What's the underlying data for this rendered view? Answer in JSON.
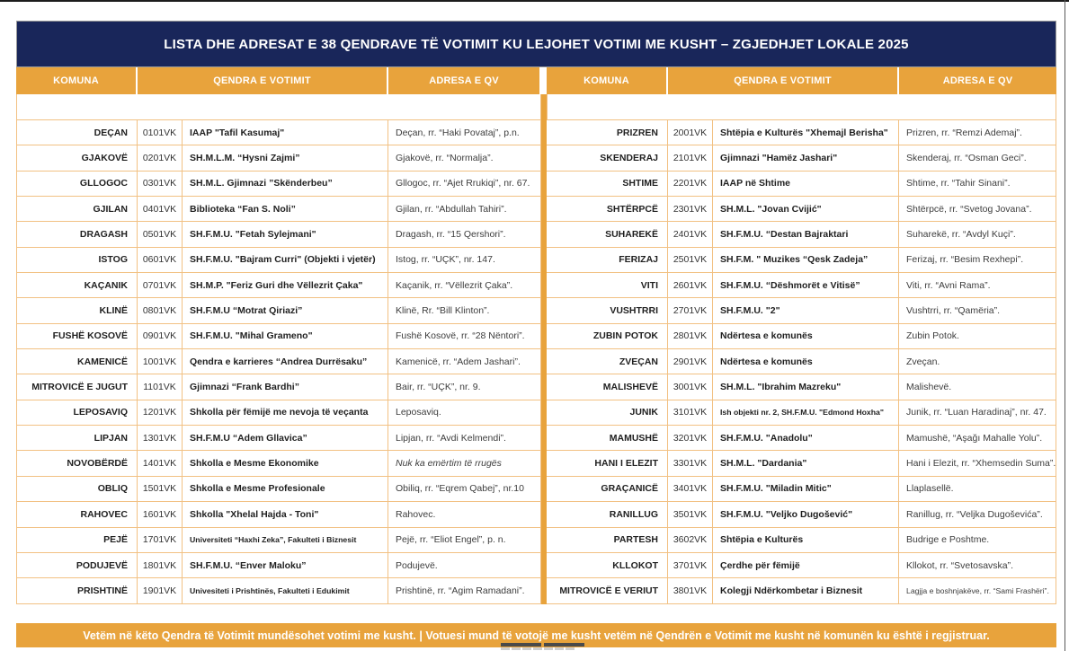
{
  "title": "LISTA DHE ADRESAT E 38 QENDRAVE TË VOTIMIT KU LEJOHET VOTIMI ME KUSHT – ZGJEDHJET LOKALE 2025",
  "columns": {
    "komuna": "KOMUNA",
    "qendra": "QENDRA E VOTIMIT",
    "adresa": "ADRESA E QV"
  },
  "colors": {
    "navy": "#19265A",
    "orange": "#E8A33C",
    "row_border": "#F2C183"
  },
  "left_rows": [
    {
      "komuna": "DEÇAN",
      "code": "0101VK",
      "qendra": "IAAP \"Tafil Kasumaj\"",
      "adresa": "Deçan, rr. “Haki Povataj”, p.n."
    },
    {
      "komuna": "GJAKOVË",
      "code": "0201VK",
      "qendra": "SH.M.L.M. “Hysni Zajmi”",
      "adresa": "Gjakovë, rr. “Normalja”."
    },
    {
      "komuna": "GLLOGOC",
      "code": "0301VK",
      "qendra": "SH.M.L. Gjimnazi ”Skënderbeu”",
      "adresa": "Gllogoc, rr. “Ajet Rrukiqi”, nr. 67."
    },
    {
      "komuna": "GJILAN",
      "code": "0401VK",
      "qendra": "Biblioteka “Fan S. Noli”",
      "adresa": "Gjilan, rr. “Abdullah Tahiri”."
    },
    {
      "komuna": "DRAGASH",
      "code": "0501VK",
      "qendra": "SH.F.M.U. \"Fetah Sylejmani\"",
      "adresa": "Dragash, rr. “15 Qershori”."
    },
    {
      "komuna": "ISTOG",
      "code": "0601VK",
      "qendra": "SH.F.M.U. \"Bajram Curri\" (Objekti i vjetër)",
      "adresa": "Istog, rr. “UÇK”, nr. 147."
    },
    {
      "komuna": "KAÇANIK",
      "code": "0701VK",
      "qendra": "SH.M.P. \"Feriz Guri dhe Vëllezrit Çaka\"",
      "adresa": "Kaçanik, rr. “Vëllezrit Çaka”."
    },
    {
      "komuna": "KLINË",
      "code": "0801VK",
      "qendra": "SH.F.M.U “Motrat Qiriazi”",
      "adresa": "Klinë, Rr. “Bill Klinton”."
    },
    {
      "komuna": "FUSHË KOSOVË",
      "code": "0901VK",
      "qendra": "SH.F.M.U. \"Mihal Grameno\"",
      "adresa": "Fushë Kosovë, rr. “28 Nëntori”."
    },
    {
      "komuna": "KAMENICË",
      "code": "1001VK",
      "qendra": "Qendra e karrieres “Andrea Durrësaku”",
      "adresa": "Kamenicë, rr. “Adem Jashari”."
    },
    {
      "komuna": "MITROVICË E JUGUT",
      "code": "1101VK",
      "qendra": "Gjimnazi “Frank Bardhi”",
      "adresa": "Bair, rr. “UÇK”, nr. 9."
    },
    {
      "komuna": "LEPOSAVIQ",
      "code": "1201VK",
      "qendra": "Shkolla për fëmijë me nevoja të veçanta",
      "adresa": "Leposaviq."
    },
    {
      "komuna": "LIPJAN",
      "code": "1301VK",
      "qendra": "SH.F.M.U “Adem Gllavica”",
      "adresa": "Lipjan, rr. “Avdi Kelmendi”."
    },
    {
      "komuna": "NOVOBËRDË",
      "code": "1401VK",
      "qendra": "Shkolla e Mesme Ekonomike",
      "adresa": "Nuk ka emërtim të rrugës",
      "adresa_italic": true
    },
    {
      "komuna": "OBLIQ",
      "code": "1501VK",
      "qendra": "Shkolla e Mesme Profesionale",
      "adresa": "Obiliq, rr. “Eqrem Qabej”, nr.10"
    },
    {
      "komuna": "RAHOVEC",
      "code": "1601VK",
      "qendra": "Shkolla \"Xhelal Hajda - Toni\"",
      "adresa": "Rahovec."
    },
    {
      "komuna": "PEJË",
      "code": "1701VK",
      "qendra": "Universiteti “Haxhi Zeka”, Fakulteti i Biznesit",
      "adresa": "Pejë, rr. “Eliot Engel”, p. n."
    },
    {
      "komuna": "PODUJEVË",
      "code": "1801VK",
      "qendra": "SH.F.M.U. “Enver Maloku”",
      "adresa": "Podujevë."
    },
    {
      "komuna": "PRISHTINË",
      "code": "1901VK",
      "qendra": "Univesiteti i Prishtinës, Fakulteti i Edukimit",
      "adresa": "Prishtinë, rr. “Agim Ramadani”."
    }
  ],
  "right_rows": [
    {
      "komuna": "PRIZREN",
      "code": "2001VK",
      "qendra": "Shtëpia e Kulturës \"Xhemajl Berisha\"",
      "adresa": "Prizren, rr. “Remzi Ademaj”."
    },
    {
      "komuna": "SKENDERAJ",
      "code": "2101VK",
      "qendra": "Gjimnazi \"Hamëz Jashari\"",
      "adresa": "Skenderaj, rr. “Osman Geci”."
    },
    {
      "komuna": "SHTIME",
      "code": "2201VK",
      "qendra": "IAAP në Shtime",
      "adresa": "Shtime, rr. “Tahir Sinani”."
    },
    {
      "komuna": "SHTËRPCË",
      "code": "2301VK",
      "qendra": "SH.M.L. \"Jovan Cvijić\"",
      "adresa": "Shtërpcë, rr. “Svetog Jovana”."
    },
    {
      "komuna": "SUHAREKË",
      "code": "2401VK",
      "qendra": "SH.F.M.U. “Destan Bajraktari",
      "adresa": "Suharekë, rr. “Avdyl Kuçi”."
    },
    {
      "komuna": "FERIZAJ",
      "code": "2501VK",
      "qendra": "SH.F.M. \" Muzikes “Qesk Zadeja”",
      "adresa": "Ferizaj, rr. “Besim Rexhepi”."
    },
    {
      "komuna": "VITI",
      "code": "2601VK",
      "qendra": "SH.F.M.U. “Dëshmorët e Vitisë”",
      "adresa": "Viti, rr. “Avni Rama”."
    },
    {
      "komuna": "VUSHTRRI",
      "code": "2701VK",
      "qendra": "SH.F.M.U. \"2\"",
      "adresa": "Vushtrri, rr. “Qamëria”."
    },
    {
      "komuna": "ZUBIN POTOK",
      "code": "2801VK",
      "qendra": "Ndërtesa e komunës",
      "adresa": "Zubin Potok."
    },
    {
      "komuna": "ZVEÇAN",
      "code": "2901VK",
      "qendra": "Ndërtesa e komunës",
      "adresa": "Zveçan."
    },
    {
      "komuna": "MALISHEVË",
      "code": "3001VK",
      "qendra": "SH.M.L. \"Ibrahim Mazreku\"",
      "adresa": "Malishevë."
    },
    {
      "komuna": "JUNIK",
      "code": "3101VK",
      "qendra": "Ish objekti nr. 2, SH.F.M.U. \"Edmond Hoxha\"",
      "adresa": "Junik, rr. “Luan Haradinaj”, nr. 47."
    },
    {
      "komuna": "MAMUSHË",
      "code": "3201VK",
      "qendra": "SH.F.M.U. \"Anadolu\"",
      "adresa": "Mamushë, “Aşağı Mahalle Yolu”."
    },
    {
      "komuna": "HANI I ELEZIT",
      "code": "3301VK",
      "qendra": "SH.M.L. \"Dardania\"",
      "adresa": "Hani i Elezit, rr. “Xhemsedin Suma”."
    },
    {
      "komuna": "GRAÇANICË",
      "code": "3401VK",
      "qendra": "SH.F.M.U. \"Miladin Mitic\"",
      "adresa": "Llaplasellë."
    },
    {
      "komuna": "RANILLUG",
      "code": "3501VK",
      "qendra": "SH.F.M.U. \"Veljko Dugošević\"",
      "adresa": "Ranillug, rr. “Veljka Dugoševića”."
    },
    {
      "komuna": "PARTESH",
      "code": "3602VK",
      "qendra": "Shtëpia e Kulturës",
      "adresa": "Budrige e Poshtme."
    },
    {
      "komuna": "KLLOKOT",
      "code": "3701VK",
      "qendra": "Çerdhe për fëmijë",
      "adresa": "Kllokot, rr. “Svetosavska”."
    },
    {
      "komuna": "MITROVICË E VERIUT",
      "code": "3801VK",
      "qendra": "Kolegji Ndërkombetar i Biznesit",
      "adresa": "Lagjja e boshnjakëve, rr. “Sami Frashëri”."
    }
  ],
  "footer": "Vetëm në këto Qendra të Votimit mundësohet votimi me kusht.  |  Votuesi mund të votojë me kusht vetëm në Qendrën e Votimit me kusht në komunën ku është i regjistruar."
}
